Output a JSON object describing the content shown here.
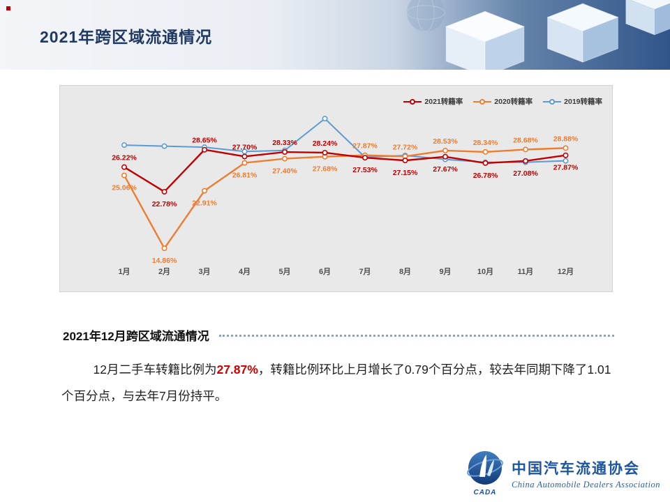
{
  "header": {
    "title": "2021年跨区域流通情况"
  },
  "chart_data": {
    "type": "line",
    "title": "",
    "categories": [
      "1月",
      "2月",
      "3月",
      "4月",
      "5月",
      "6月",
      "7月",
      "8月",
      "9月",
      "10月",
      "11月",
      "12月"
    ],
    "series": [
      {
        "name": "2021转籍率",
        "color": "#C00000",
        "values": [
          26.22,
          22.78,
          28.65,
          27.7,
          28.33,
          28.24,
          27.53,
          27.15,
          27.67,
          26.78,
          27.08,
          27.87
        ],
        "show_labels": true,
        "label_sides": [
          "above",
          "below",
          "above",
          "above",
          "above",
          "above",
          "below",
          "below",
          "below",
          "below",
          "below",
          "below"
        ]
      },
      {
        "name": "2020转籍率",
        "color": "#ED7D31",
        "values": [
          25.06,
          14.86,
          22.91,
          26.81,
          27.4,
          27.68,
          27.87,
          27.72,
          28.53,
          28.34,
          28.68,
          28.88
        ],
        "show_labels": true,
        "label_sides": [
          "below",
          "below",
          "below",
          "below",
          "below",
          "below",
          "above",
          "above",
          "above",
          "above",
          "above",
          "above"
        ]
      },
      {
        "name": "2019转籍率",
        "color": "#5B9BD5",
        "values": [
          29.3,
          29.15,
          29.0,
          28.4,
          28.55,
          33.0,
          27.6,
          27.85,
          27.3,
          26.9,
          26.9,
          27.1
        ],
        "show_labels": false,
        "label_sides": []
      }
    ],
    "ylim": [
      14,
      33.5
    ],
    "legend_position": "top-right",
    "grid": false,
    "plot_background": "#e9e9e9"
  },
  "section": {
    "heading": "2021年12月跨区域流通情况",
    "paragraph": {
      "prefix": "12月二手车转籍比例为",
      "highlight": "27.87%",
      "suffix": "，转籍比例环比上月增长了0.79个百分点，较去年同期下降了1.01个百分点，与去年7月份持平。"
    }
  },
  "footer": {
    "logo_text": "CADA",
    "org_cn": "中国汽车流通协会",
    "org_en": "China Automobile Dealers Association"
  }
}
